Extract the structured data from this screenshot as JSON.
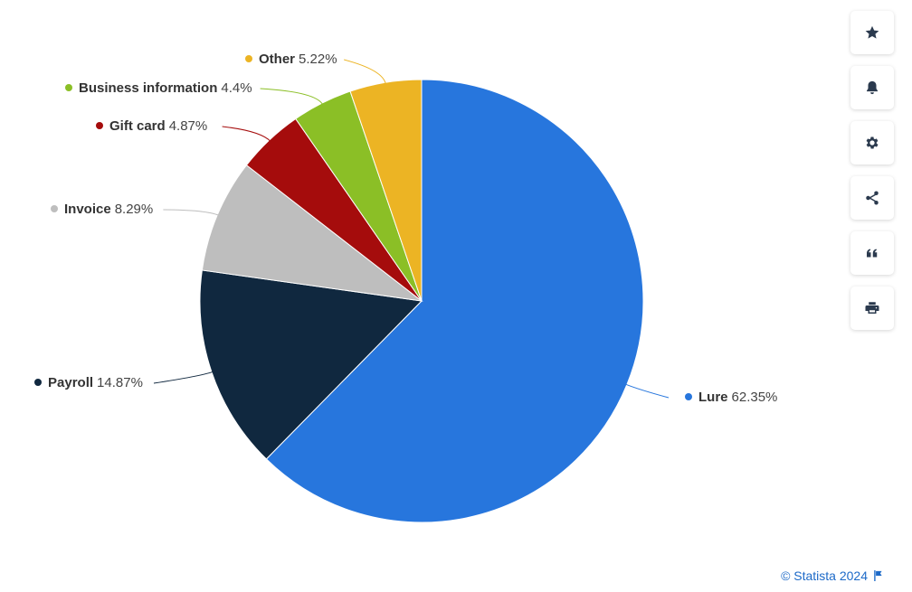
{
  "chart_data": {
    "type": "pie",
    "slices": [
      {
        "label": "Lure",
        "value": 62.35,
        "display": "62.35%",
        "color": "#2776dd"
      },
      {
        "label": "Payroll",
        "value": 14.87,
        "display": "14.87%",
        "color": "#10283f"
      },
      {
        "label": "Invoice",
        "value": 8.29,
        "display": "8.29%",
        "color": "#bebebe"
      },
      {
        "label": "Gift card",
        "value": 4.87,
        "display": "4.87%",
        "color": "#a50c0c"
      },
      {
        "label": "Business information",
        "value": 4.4,
        "display": "4.4%",
        "color": "#8bbf26"
      },
      {
        "label": "Other",
        "value": 5.22,
        "display": "5.22%",
        "color": "#ecb424"
      }
    ],
    "start_angle_deg": 0,
    "direction": "clockwise",
    "legend": "labels-beside-slices"
  },
  "toolbar": {
    "buttons": [
      {
        "icon": "star-icon",
        "name": "favorite-button"
      },
      {
        "icon": "bell-icon",
        "name": "notification-button"
      },
      {
        "icon": "gear-icon",
        "name": "settings-button"
      },
      {
        "icon": "share-icon",
        "name": "share-button"
      },
      {
        "icon": "quote-icon",
        "name": "cite-button"
      },
      {
        "icon": "print-icon",
        "name": "print-button"
      }
    ]
  },
  "credit": {
    "text": "© Statista 2024",
    "icon": "flag-icon"
  }
}
